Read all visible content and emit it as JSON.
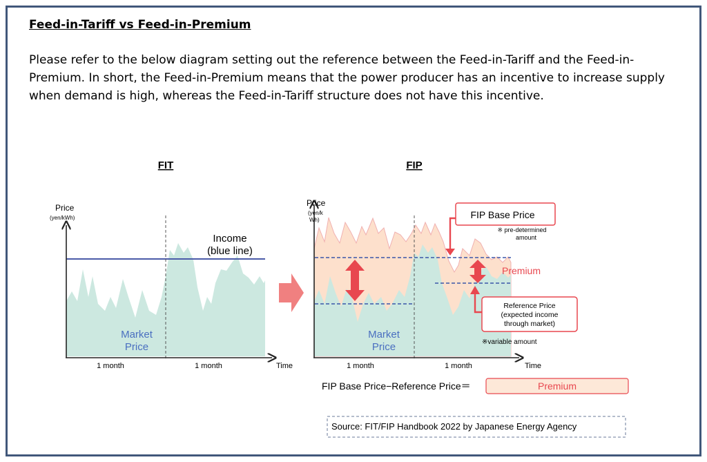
{
  "heading": "Feed-in-Tariff vs Feed-in-Premium",
  "paragraph": "Please refer to the below diagram setting out the reference between the Feed-in-Tariff and the Feed-in-Premium. In short, the Feed-in-Premium means that the power producer has an incentive to increase supply when demand is high, whereas the Feed-in-Tariff structure does not have this incentive.",
  "fit": {
    "title": "FIT",
    "y_label": "Price",
    "y_unit": "(yen/kWh)",
    "x_label": "Time",
    "period1": "1 month",
    "period2": "1 month",
    "income_line1": "Income",
    "income_line2": "(blue line)",
    "market_line1": "Market",
    "market_line2": "Price"
  },
  "fip": {
    "title": "FIP",
    "y_label": "Price",
    "y_unit_line1": "(yen/k",
    "y_unit_line2": "Wh)",
    "x_label": "Time",
    "period1": "1 month",
    "period2": "1 month",
    "base_price_box": "FIP Base Price",
    "predetermined_line1": "※ pre-determined",
    "predetermined_line2": "amount",
    "premium_label": "Premium",
    "reference_line1": "Reference Price",
    "reference_line2": "(expected income",
    "reference_line3": "through market)",
    "variable_amount": "※variable amount",
    "market_line1": "Market",
    "market_line2": "Price"
  },
  "formula": {
    "left": "FIP Base Price−Reference Price＝",
    "result": "Premium"
  },
  "source": "Source: FIT/FIP Handbook 2022 by Japanese Energy Agency",
  "colors": {
    "border": "#41577a",
    "market_fill": "#cce8e0",
    "premium_fill": "#fde0cc",
    "income_line": "#4a5aa8",
    "accent_red": "#e8474f",
    "arrow_pink": "#f08080"
  }
}
